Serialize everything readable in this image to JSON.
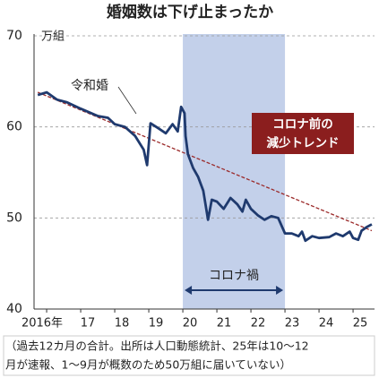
{
  "chart_data": {
    "type": "line",
    "title": "婚姻数は下げ止まったか",
    "y_unit": "万組",
    "x": [
      2015.74,
      2016.0,
      2016.3,
      2016.6,
      2017.0,
      2017.5,
      2017.8,
      2018.0,
      2018.3,
      2018.6,
      2018.85,
      2018.95,
      2019.05,
      2019.3,
      2019.5,
      2019.7,
      2019.85,
      2019.95,
      2020.05,
      2020.08,
      2020.15,
      2020.3,
      2020.45,
      2020.6,
      2020.74,
      2020.85,
      2021.0,
      2021.2,
      2021.4,
      2021.6,
      2021.75,
      2021.85,
      2022.0,
      2022.2,
      2022.4,
      2022.6,
      2022.8,
      2023.0,
      2023.2,
      2023.4,
      2023.5,
      2023.6,
      2023.8,
      2024.0,
      2024.3,
      2024.5,
      2024.7,
      2024.9,
      2025.0,
      2025.15,
      2025.25,
      2025.4,
      2025.55
    ],
    "series": [
      {
        "name": "婚姻数",
        "color": "#1f3a6e",
        "values": [
          63.5,
          63.8,
          63.0,
          62.7,
          62.0,
          61.2,
          61.0,
          60.3,
          60.0,
          59.0,
          57.5,
          55.8,
          60.4,
          59.8,
          59.3,
          60.3,
          59.5,
          62.2,
          61.5,
          59.0,
          57.0,
          55.5,
          54.5,
          53.0,
          49.8,
          52.0,
          51.8,
          51.0,
          52.2,
          51.5,
          50.7,
          52.0,
          51.0,
          50.3,
          49.8,
          50.2,
          50.0,
          48.3,
          48.3,
          48.0,
          48.5,
          47.5,
          48.0,
          47.8,
          47.9,
          48.3,
          48.0,
          48.5,
          47.8,
          47.6,
          48.6,
          49.0,
          49.3
        ]
      }
    ],
    "trend": {
      "x": [
        2015.74,
        2025.55
      ],
      "values": [
        63.8,
        48.6
      ],
      "color": "#9b2a2a"
    },
    "xlim": [
      2015.63,
      2025.63
    ],
    "xticks": [
      {
        "value": 2016,
        "label": "2016年"
      },
      {
        "value": 2017,
        "label": "17"
      },
      {
        "value": 2018,
        "label": "18"
      },
      {
        "value": 2019,
        "label": "19"
      },
      {
        "value": 2020,
        "label": "20"
      },
      {
        "value": 2021,
        "label": "21"
      },
      {
        "value": 2022,
        "label": "22"
      },
      {
        "value": 2023,
        "label": "23"
      },
      {
        "value": 2024,
        "label": "24"
      },
      {
        "value": 2025,
        "label": "25"
      }
    ],
    "ylim": [
      40,
      70
    ],
    "yticks": [
      40,
      50,
      60,
      70
    ],
    "grid": true,
    "shade": {
      "from": 2020,
      "to": 2023,
      "label": "コロナ禍",
      "color": "#c3d0ea"
    },
    "annotations": {
      "reiwa": "令和婚",
      "trend_box": [
        "コロナ前の",
        "減少トレンド"
      ]
    },
    "footnote": [
      "（過去12カ月の合計。出所は人口動態統計、25年は10～12",
      "月が速報、1～9月が概数のため50万組に届いていない）"
    ]
  }
}
